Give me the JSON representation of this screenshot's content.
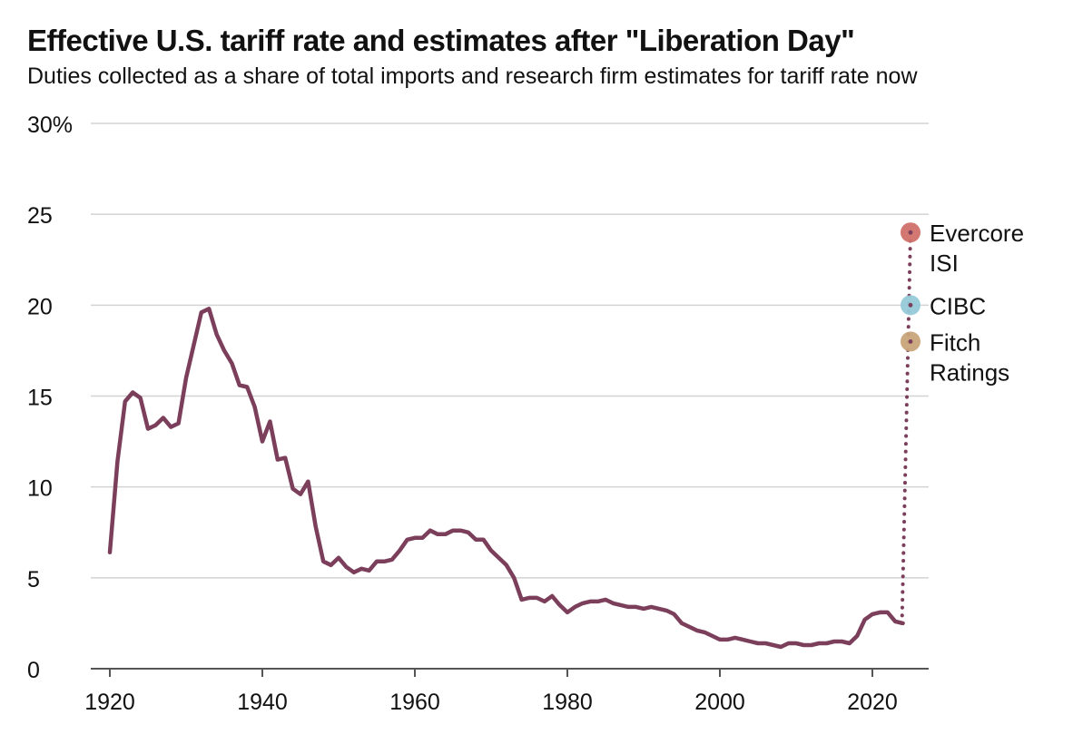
{
  "header": {
    "title": "Effective U.S. tariff rate and estimates after \"Liberation Day\"",
    "subtitle": "Duties collected as a share of total imports and research firm estimates for tariff rate now"
  },
  "chart_data": {
    "type": "line",
    "title": "Effective U.S. tariff rate and estimates after \"Liberation Day\"",
    "subtitle": "Duties collected as a share of total imports and research firm estimates for tariff rate now",
    "xlabel": "",
    "ylabel": "",
    "xlim": [
      1920,
      2027
    ],
    "ylim": [
      0,
      30
    ],
    "x_ticks": [
      1920,
      1940,
      1960,
      1980,
      2000,
      2020
    ],
    "y_ticks": [
      0,
      5,
      10,
      15,
      20,
      25,
      30
    ],
    "y_tick_labels": [
      "0",
      "5",
      "10",
      "15",
      "20",
      "25",
      "30%"
    ],
    "grid": true,
    "colors": {
      "line": "#7b3e5b",
      "grid": "#d3d3d3",
      "axis": "#555555",
      "evercore": "#d0706a",
      "cibc": "#96c9d8",
      "fitch": "#c8a57b"
    },
    "series": [
      {
        "name": "Effective U.S. tariff rate",
        "x": [
          1920,
          1921,
          1922,
          1923,
          1924,
          1925,
          1926,
          1927,
          1928,
          1929,
          1930,
          1931,
          1932,
          1933,
          1934,
          1935,
          1936,
          1937,
          1938,
          1939,
          1940,
          1941,
          1942,
          1943,
          1944,
          1945,
          1946,
          1947,
          1948,
          1949,
          1950,
          1951,
          1952,
          1953,
          1954,
          1955,
          1956,
          1957,
          1958,
          1959,
          1960,
          1961,
          1962,
          1963,
          1964,
          1965,
          1966,
          1967,
          1968,
          1969,
          1970,
          1971,
          1972,
          1973,
          1974,
          1975,
          1976,
          1977,
          1978,
          1979,
          1980,
          1981,
          1982,
          1983,
          1984,
          1985,
          1986,
          1987,
          1988,
          1989,
          1990,
          1991,
          1992,
          1993,
          1994,
          1995,
          1996,
          1997,
          1998,
          1999,
          2000,
          2001,
          2002,
          2003,
          2004,
          2005,
          2006,
          2007,
          2008,
          2009,
          2010,
          2011,
          2012,
          2013,
          2014,
          2015,
          2016,
          2017,
          2018,
          2019,
          2020,
          2021,
          2022,
          2023,
          2024
        ],
        "values": [
          6.4,
          11.4,
          14.7,
          15.2,
          14.9,
          13.2,
          13.4,
          13.8,
          13.3,
          13.5,
          16.0,
          17.8,
          19.6,
          19.8,
          18.4,
          17.5,
          16.8,
          15.6,
          15.5,
          14.4,
          12.5,
          13.6,
          11.5,
          11.6,
          9.9,
          9.6,
          10.3,
          7.8,
          5.9,
          5.7,
          6.1,
          5.6,
          5.3,
          5.5,
          5.4,
          5.9,
          5.9,
          6.0,
          6.5,
          7.1,
          7.2,
          7.2,
          7.6,
          7.4,
          7.4,
          7.6,
          7.6,
          7.5,
          7.1,
          7.1,
          6.5,
          6.1,
          5.7,
          5.0,
          3.8,
          3.9,
          3.9,
          3.7,
          4.0,
          3.5,
          3.1,
          3.4,
          3.6,
          3.7,
          3.7,
          3.8,
          3.6,
          3.5,
          3.4,
          3.4,
          3.3,
          3.4,
          3.3,
          3.2,
          3.0,
          2.5,
          2.3,
          2.1,
          2.0,
          1.8,
          1.6,
          1.6,
          1.7,
          1.6,
          1.5,
          1.4,
          1.4,
          1.3,
          1.2,
          1.4,
          1.4,
          1.3,
          1.3,
          1.4,
          1.4,
          1.5,
          1.5,
          1.4,
          1.8,
          2.7,
          3.0,
          3.1,
          3.1,
          2.6,
          2.5
        ]
      }
    ],
    "estimates": [
      {
        "name": "Evercore ISI",
        "label_lines": [
          "Evercore",
          "ISI"
        ],
        "x": 2025,
        "value": 24
      },
      {
        "name": "CIBC",
        "label_lines": [
          "CIBC"
        ],
        "x": 2025,
        "value": 20
      },
      {
        "name": "Fitch Ratings",
        "label_lines": [
          "Fitch",
          "Ratings"
        ],
        "x": 2025,
        "value": 18
      }
    ],
    "dotted_connector": {
      "from_year": 2024,
      "from_value": 2.5,
      "to_year": 2025,
      "to_value": 24
    }
  }
}
